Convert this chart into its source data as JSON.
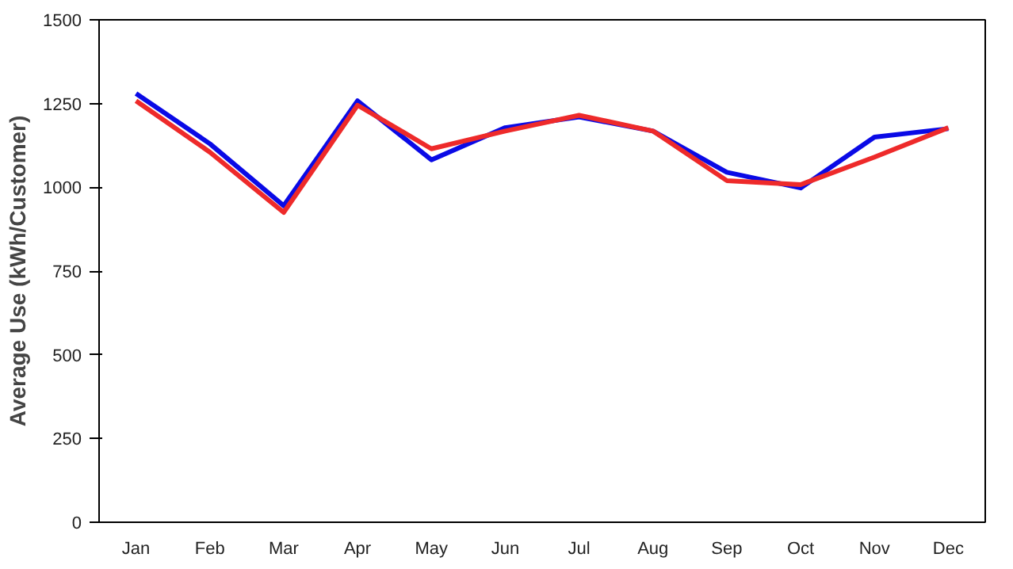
{
  "chart_data": {
    "type": "line",
    "ylabel": "Average Use (kWh/Customer)",
    "categories": [
      "Jan",
      "Feb",
      "Mar",
      "Apr",
      "May",
      "Jun",
      "Jul",
      "Aug",
      "Sep",
      "Oct",
      "Nov",
      "Dec"
    ],
    "series": [
      {
        "color": "#0a0ae6",
        "values": [
          1280,
          1130,
          945,
          1258,
          1082,
          1178,
          1210,
          1168,
          1045,
          998,
          1150,
          1175
        ]
      },
      {
        "color": "#ee2a2a",
        "values": [
          1258,
          1105,
          925,
          1245,
          1115,
          1168,
          1215,
          1168,
          1020,
          1008,
          1090,
          1178
        ]
      }
    ],
    "ylim": [
      0,
      1500
    ],
    "yticks": [
      0,
      250,
      500,
      750,
      1000,
      1250,
      1500
    ],
    "line_style": "solid",
    "marker": "none"
  }
}
